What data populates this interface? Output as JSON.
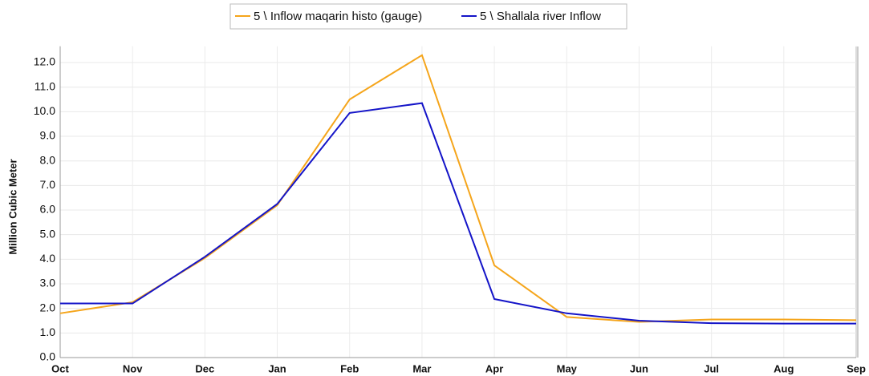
{
  "chart_data": {
    "type": "line",
    "y_label": "Million Cubic Meter",
    "categories": [
      "Oct",
      "Nov",
      "Dec",
      "Jan",
      "Feb",
      "Mar",
      "Apr",
      "May",
      "Jun",
      "Jul",
      "Aug",
      "Sep"
    ],
    "series": [
      {
        "name": "5 \\ Inflow maqarin histo (gauge)",
        "color": "#f5a51b",
        "values": [
          1.8,
          2.25,
          4.05,
          6.2,
          10.5,
          12.3,
          3.75,
          1.65,
          1.45,
          1.55,
          1.55,
          1.52
        ]
      },
      {
        "name": "5 \\ Shallala river Inflow",
        "color": "#1414c8",
        "values": [
          2.2,
          2.2,
          4.1,
          6.25,
          9.95,
          10.35,
          2.38,
          1.8,
          1.5,
          1.4,
          1.38,
          1.38
        ]
      }
    ],
    "ylim": [
      0,
      12.5
    ],
    "yticks": [
      {
        "value": 0,
        "label": "0.0"
      },
      {
        "value": 1,
        "label": "1.0"
      },
      {
        "value": 2,
        "label": "2.0"
      },
      {
        "value": 3,
        "label": "3.0"
      },
      {
        "value": 4,
        "label": "4.0"
      },
      {
        "value": 5,
        "label": "5.0"
      },
      {
        "value": 6,
        "label": "6.0"
      },
      {
        "value": 7,
        "label": "7.0"
      },
      {
        "value": 8,
        "label": "8.0"
      },
      {
        "value": 9,
        "label": "9.0"
      },
      {
        "value": 10,
        "label": "10.0"
      },
      {
        "value": 11,
        "label": "11.0"
      },
      {
        "value": 12,
        "label": "12.0"
      }
    ],
    "grid": true
  }
}
